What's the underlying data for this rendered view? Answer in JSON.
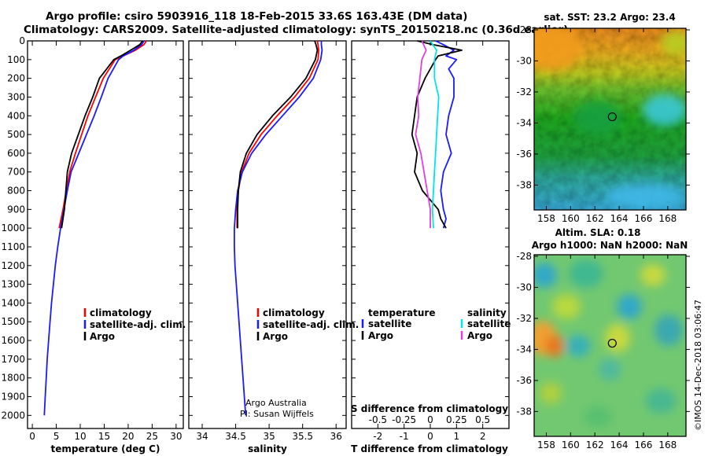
{
  "title_line1": "Argo profile: csiro 5903916_118 18-Feb-2015 33.6S 163.43E (DM data)",
  "title_line2": "Climatology: CARS2009. Satellite-adjusted climatology: synTS_20150218.nc (0.36d earlier)",
  "credit_org": "Argo Australia",
  "credit_pi": "PI: Susan Wijffels",
  "watermark": "©IMOS 14-Dec-2018 03:06:47",
  "colors": {
    "climatology": "#ff0000",
    "satellite": "#1a1aff",
    "argo": "#000000",
    "salinity_sat": "#00e5e5",
    "salinity_argo": "#e040e0"
  },
  "map_sst": {
    "title": "sat. SST: 23.2 Argo: 23.4",
    "x_ticks": [
      "158",
      "160",
      "162",
      "164",
      "166",
      "168"
    ],
    "y_ticks": [
      "-28",
      "-30",
      "-32",
      "-34",
      "-36",
      "-38"
    ],
    "x_range": [
      157,
      169.5
    ],
    "y_range": [
      -39.6,
      -27.9
    ],
    "float_lon": 163.43,
    "float_lat": -33.6
  },
  "map_sla": {
    "title_line1": "Altim. SLA: 0.18",
    "title_line2": "Argo h1000: NaN h2000: NaN",
    "x_ticks": [
      "158",
      "160",
      "162",
      "164",
      "166",
      "168"
    ],
    "y_ticks": [
      "-28",
      "-30",
      "-32",
      "-34",
      "-36",
      "-38"
    ],
    "x_range": [
      157,
      169.5
    ],
    "y_range": [
      -39.6,
      -27.9
    ],
    "float_lon": 163.43,
    "float_lat": -33.6
  },
  "chart_data": [
    {
      "type": "line",
      "id": "temperature",
      "xlabel": "temperature (deg C)",
      "ylabel": "depth",
      "xlim": [
        -1,
        31.5
      ],
      "ylim": [
        0,
        2070
      ],
      "x_ticks": [
        "0",
        "5",
        "10",
        "15",
        "20",
        "25",
        "30"
      ],
      "y_ticks": [
        "0",
        "100",
        "200",
        "300",
        "400",
        "500",
        "600",
        "700",
        "800",
        "900",
        "1000",
        "1100",
        "1200",
        "1300",
        "1400",
        "1500",
        "1600",
        "1700",
        "1800",
        "1900",
        "2000"
      ],
      "legend": [
        "climatology",
        "satellite-adj. clim.",
        "Argo"
      ],
      "series": [
        {
          "name": "climatology",
          "depth": [
            0,
            20,
            50,
            80,
            100,
            200,
            300,
            400,
            500,
            600,
            700,
            800,
            900,
            1000
          ],
          "values": [
            23.8,
            23.3,
            21.5,
            19.0,
            17.3,
            14.8,
            13.2,
            11.6,
            10.3,
            9.0,
            7.8,
            7.1,
            6.4,
            5.6
          ]
        },
        {
          "name": "satellite-adj. clim.",
          "depth": [
            0,
            20,
            50,
            80,
            100,
            200,
            300,
            400,
            500,
            600,
            700,
            800,
            900,
            1000,
            1100,
            1200,
            1300,
            1400,
            1500,
            1600,
            1700,
            1800,
            1900,
            2000
          ],
          "values": [
            23.3,
            22.8,
            21.2,
            19.0,
            18.0,
            15.8,
            14.4,
            12.9,
            11.3,
            9.7,
            8.1,
            7.3,
            6.6,
            5.9,
            5.3,
            4.8,
            4.4,
            4.0,
            3.7,
            3.4,
            3.1,
            2.9,
            2.7,
            2.5
          ]
        },
        {
          "name": "Argo",
          "depth": [
            0,
            20,
            50,
            80,
            100,
            200,
            300,
            400,
            500,
            600,
            700,
            800,
            900,
            1000
          ],
          "values": [
            23.0,
            22.4,
            20.5,
            18.5,
            17.0,
            14.0,
            12.6,
            11.0,
            9.6,
            8.2,
            7.3,
            7.0,
            6.7,
            6.1
          ]
        }
      ]
    },
    {
      "type": "line",
      "id": "salinity",
      "xlabel": "salinity",
      "ylabel": "depth",
      "xlim": [
        33.8,
        36.15
      ],
      "ylim": [
        0,
        2070
      ],
      "x_ticks": [
        "34",
        "34.5",
        "35",
        "35.5",
        "36"
      ],
      "legend": [
        "climatology",
        "satellite-adj. clim.",
        "Argo"
      ],
      "series": [
        {
          "name": "climatology",
          "depth": [
            0,
            20,
            50,
            100,
            200,
            300,
            400,
            500,
            600,
            700,
            800,
            900,
            1000
          ],
          "values": [
            35.72,
            35.73,
            35.74,
            35.73,
            35.6,
            35.38,
            35.12,
            34.88,
            34.7,
            34.59,
            34.54,
            34.52,
            34.52
          ]
        },
        {
          "name": "satellite-adj. clim.",
          "depth": [
            0,
            20,
            50,
            100,
            200,
            300,
            400,
            500,
            600,
            700,
            800,
            900,
            1000,
            1100,
            1200,
            1300,
            1400,
            1500,
            1600,
            1700,
            1800,
            1900,
            2000
          ],
          "values": [
            35.78,
            35.78,
            35.79,
            35.77,
            35.66,
            35.45,
            35.2,
            34.95,
            34.74,
            34.6,
            34.53,
            34.5,
            34.48,
            34.48,
            34.49,
            34.51,
            34.53,
            34.55,
            34.57,
            34.59,
            34.61,
            34.63,
            34.65
          ]
        },
        {
          "name": "Argo",
          "depth": [
            0,
            20,
            50,
            100,
            200,
            300,
            400,
            500,
            600,
            700,
            800,
            900,
            1000
          ],
          "values": [
            35.68,
            35.7,
            35.72,
            35.69,
            35.55,
            35.32,
            35.05,
            34.82,
            34.66,
            34.57,
            34.54,
            34.53,
            34.53
          ]
        }
      ]
    },
    {
      "type": "line",
      "id": "difference",
      "xlabel": "T difference from climatology",
      "xlabel_top": "S difference from climatology",
      "xlim": [
        -3.0,
        3.0
      ],
      "ylim": [
        0,
        2070
      ],
      "x_ticks": [
        "-2",
        "-1",
        "0",
        "1",
        "2"
      ],
      "x_ticks_top": [
        "-0.5",
        "-0.25",
        "0",
        "0.25",
        "0.5"
      ],
      "legend_temperature": {
        "title": "temperature",
        "items": [
          "satellite",
          "Argo"
        ]
      },
      "legend_salinity": {
        "title": "salinity",
        "items": [
          "satellite",
          "Argo"
        ]
      },
      "series": [
        {
          "name": "temperature satellite",
          "depth": [
            0,
            20,
            50,
            80,
            100,
            150,
            200,
            300,
            400,
            500,
            600,
            700,
            800,
            900,
            950,
            1000
          ],
          "values": [
            0.2,
            0.5,
            0.9,
            0.6,
            1.0,
            0.7,
            0.9,
            0.9,
            0.7,
            0.6,
            0.8,
            0.5,
            0.4,
            0.5,
            0.6,
            0.5
          ]
        },
        {
          "name": "temperature Argo",
          "depth": [
            0,
            20,
            50,
            80,
            100,
            200,
            300,
            400,
            500,
            600,
            700,
            800,
            850,
            900,
            950,
            1000
          ],
          "values": [
            -0.5,
            0.1,
            1.2,
            0.3,
            0.2,
            -0.2,
            -0.5,
            -0.6,
            -0.7,
            -0.5,
            -0.6,
            -0.3,
            0.0,
            0.3,
            0.4,
            0.6
          ]
        },
        {
          "name": "salinity satellite",
          "depth": [
            0,
            50,
            100,
            200,
            300,
            400,
            500,
            600,
            700,
            800,
            900,
            1000
          ],
          "values": [
            0.0,
            0.06,
            0.04,
            0.04,
            0.08,
            0.07,
            0.06,
            0.05,
            0.04,
            0.03,
            0.02,
            0.03
          ]
        },
        {
          "name": "salinity Argo",
          "depth": [
            0,
            50,
            100,
            200,
            300,
            400,
            500,
            600,
            700,
            800,
            900,
            1000
          ],
          "values": [
            -0.08,
            -0.04,
            -0.08,
            -0.1,
            -0.12,
            -0.11,
            -0.14,
            -0.09,
            -0.06,
            -0.03,
            0.0,
            0.0
          ]
        }
      ]
    }
  ]
}
